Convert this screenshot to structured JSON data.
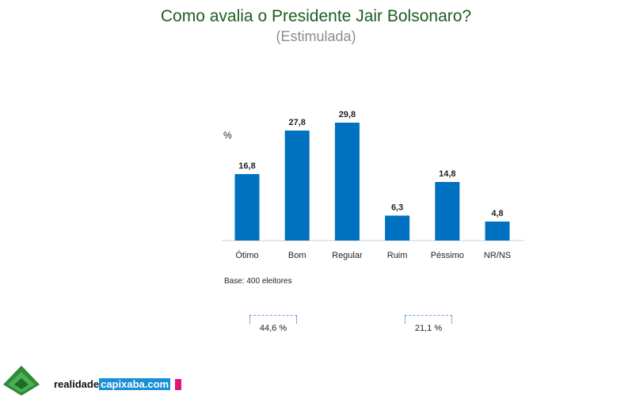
{
  "title": "Como avalia o Presidente Jair Bolsonaro?",
  "subtitle": "(Estimulada)",
  "unit_label": "%",
  "base_note": "Base: 400 eleitores",
  "groups": [
    {
      "label": "44,6 %"
    },
    {
      "label": "21,1 %"
    }
  ],
  "brand": {
    "part1": "realidade",
    "part2": "capixaba.com"
  },
  "colors": {
    "bar": "#0070c0",
    "title": "#1f5c1f",
    "subtitle": "#8c8c8c",
    "bracket": "#6a9fd4"
  },
  "chart_data": {
    "type": "bar",
    "title": "Como avalia o Presidente Jair Bolsonaro?",
    "subtitle": "(Estimulada)",
    "ylabel": "%",
    "categories": [
      "Ótimo",
      "Bom",
      "Regular",
      "Ruim",
      "Péssimo",
      "NR/NS"
    ],
    "values": [
      16.8,
      27.8,
      29.8,
      6.3,
      14.8,
      4.8
    ],
    "value_labels": [
      "16,8",
      "27,8",
      "29,8",
      "6,3",
      "14,8",
      "4,8"
    ],
    "ylim": [
      0,
      30
    ]
  }
}
